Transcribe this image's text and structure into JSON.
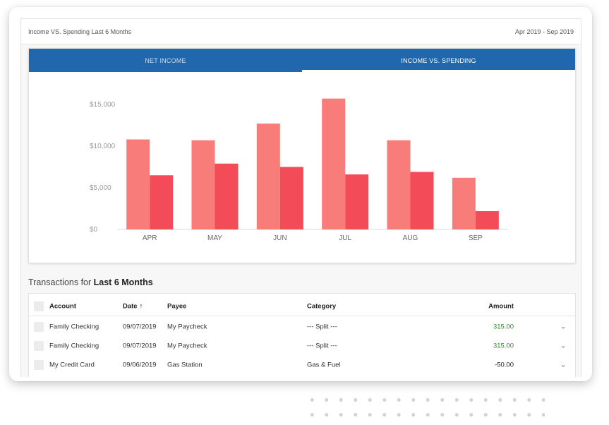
{
  "header": {
    "title": "Income VS. Spending Last 6 Months",
    "date_range": "Apr 2019 - Sep 2019"
  },
  "tabs": [
    {
      "label": "NET INCOME",
      "active": false
    },
    {
      "label": "INCOME VS. SPENDING",
      "active": true
    }
  ],
  "colors": {
    "income": "#f87d7a",
    "spending": "#f44b59",
    "tabbar": "#2067ad",
    "positive": "#2e8b2e"
  },
  "chart_data": {
    "type": "bar",
    "categories": [
      "APR",
      "MAY",
      "JUN",
      "JUL",
      "AUG",
      "SEP"
    ],
    "series": [
      {
        "values": [
          10800,
          10700,
          12700,
          15700,
          10700,
          6200
        ]
      },
      {
        "values": [
          6500,
          7900,
          7500,
          6600,
          6900,
          2200
        ]
      }
    ],
    "yticks": [
      "$0",
      "$5,000",
      "$10,000",
      "$15,000"
    ],
    "ytick_values": [
      0,
      5000,
      10000,
      15000
    ],
    "ylim": [
      0,
      15500
    ],
    "grid": false,
    "legend": "none"
  },
  "transactions": {
    "heading_prefix": "Transactions for",
    "heading_period": "Last 6 Months",
    "columns": {
      "account": "Account",
      "date": "Date",
      "payee": "Payee",
      "category": "Category",
      "amount": "Amount"
    },
    "sort_icon": "↑",
    "rows": [
      {
        "account": "Family Checking",
        "date": "09/07/2019",
        "payee": "My Paycheck",
        "category": "--- Split ---",
        "amount": "315.00",
        "sign": "pos"
      },
      {
        "account": "Family Checking",
        "date": "09/07/2019",
        "payee": "My Paycheck",
        "category": "--- Split ---",
        "amount": "315.00",
        "sign": "pos"
      },
      {
        "account": "My Credit Card",
        "date": "09/06/2019",
        "payee": "Gas Station",
        "category": "Gas & Fuel",
        "amount": "-50.00",
        "sign": "neg"
      }
    ]
  }
}
